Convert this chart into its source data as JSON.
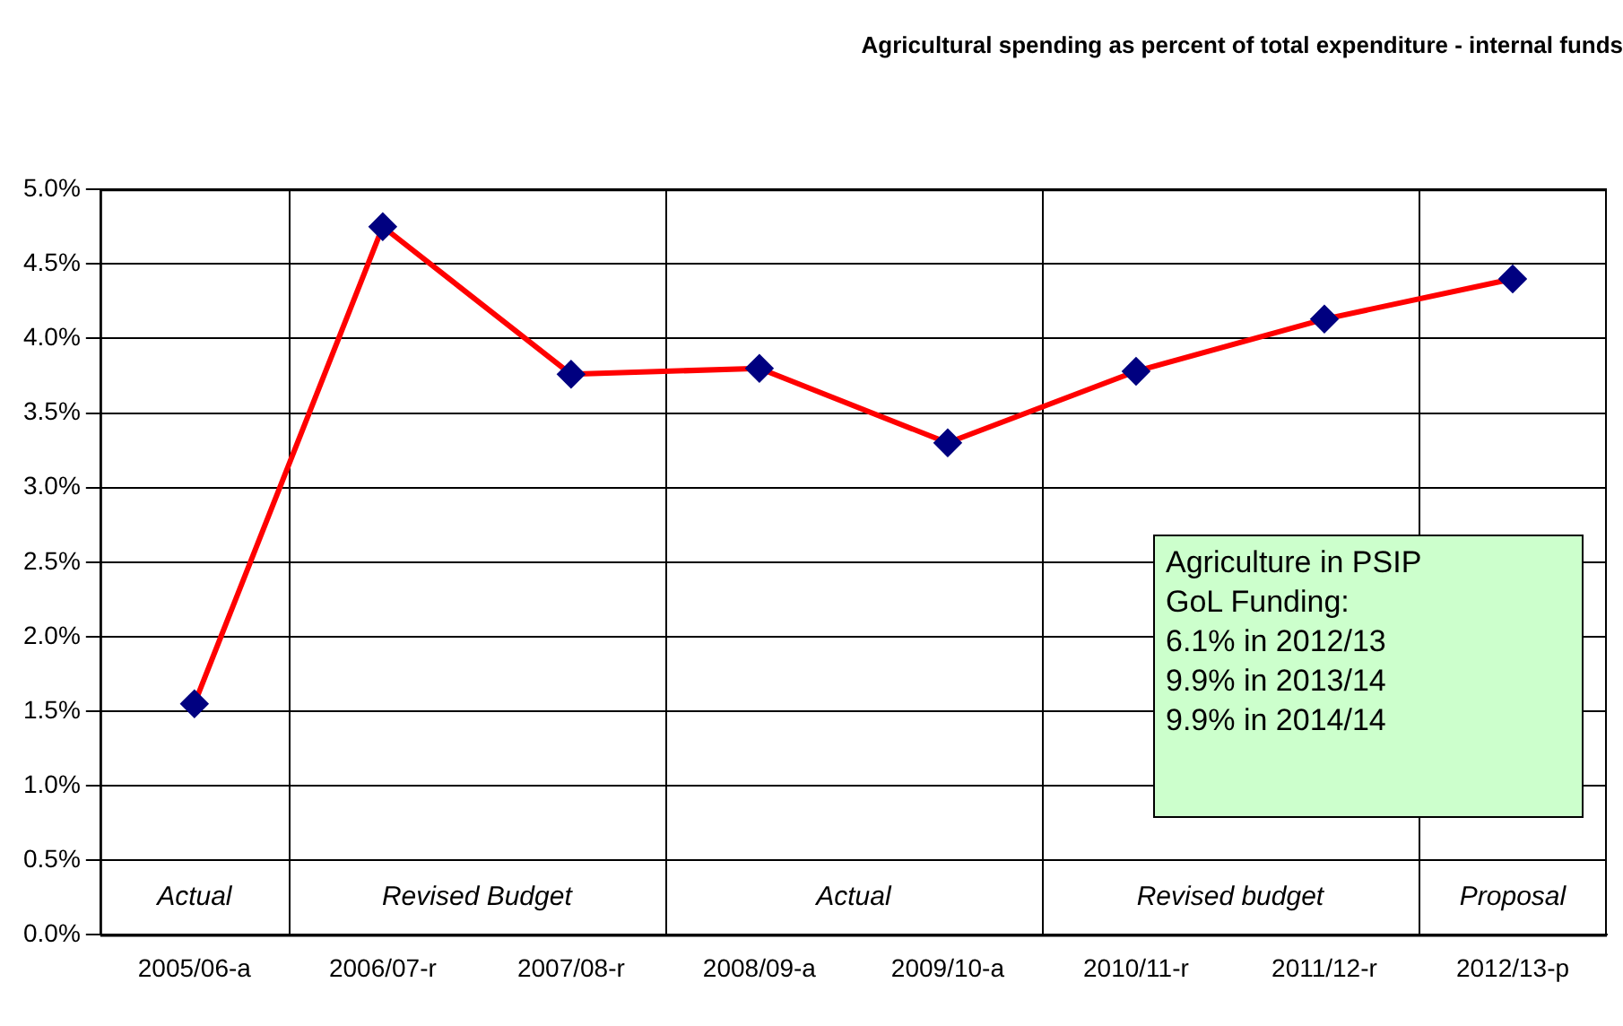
{
  "chart_data": {
    "type": "line",
    "title": "Agricultural spending as percent of total expenditure - internal funds",
    "categories": [
      "2005/06-a",
      "2006/07-r",
      "2007/08-r",
      "2008/09-a",
      "2009/10-a",
      "2010/11-r",
      "2011/12-r",
      "2012/13-p"
    ],
    "series": [
      {
        "color": "#ff0000",
        "colors": [
          "#000080",
          "#000080",
          "#000080",
          "#000080",
          "#000080",
          "#000080",
          "#000080",
          "#000080"
        ],
        "values": [
          1.55,
          4.75,
          3.76,
          3.8,
          3.3,
          3.78,
          4.13,
          4.4
        ]
      }
    ],
    "marker": "diamond",
    "line_style": "solid",
    "ylim": [
      0,
      5
    ],
    "yticks": [
      {
        "value": 0,
        "label": "0.0%"
      },
      {
        "value": 0.5,
        "label": "0.5%"
      },
      {
        "value": 1,
        "label": "1.0%"
      },
      {
        "value": 1.5,
        "label": "1.5%"
      },
      {
        "value": 2,
        "label": "2.0%"
      },
      {
        "value": 2.5,
        "label": "2.5%"
      },
      {
        "value": 3,
        "label": "3.0%"
      },
      {
        "value": 3.5,
        "label": "3.5%"
      },
      {
        "value": 4,
        "label": "4.0%"
      },
      {
        "value": 4.5,
        "label": "4.5%"
      },
      {
        "value": 5,
        "label": "5.0%"
      }
    ],
    "grid": "y",
    "legend": false,
    "annotations": [
      "Agriculture in PSIP\nGoL Funding:\n6.1% in 2012/13\n9.9% in 2013/14\n9.9% in 2014/14",
      "Actual",
      "Revised Budget",
      "Actual",
      "Revised budget",
      "Proposal"
    ]
  }
}
